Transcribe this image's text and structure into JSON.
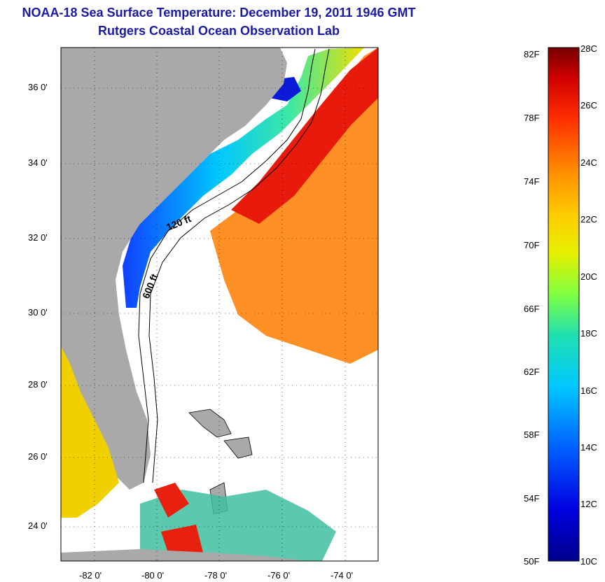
{
  "title": {
    "line1": "NOAA-18 Sea Surface Temperature:  December 19, 2011 1946 GMT",
    "line2": "Rutgers Coastal Ocean Observation Lab"
  },
  "axes": {
    "lat_labels": [
      "36 0'",
      "34 0'",
      "32 0'",
      "30 0'",
      "28 0'",
      "26 0'",
      "24 0'"
    ],
    "lon_labels": [
      "-82 0'",
      "-80 0'",
      "-78 0'",
      "-76 0'",
      "-74 0'"
    ]
  },
  "contours": {
    "shallow": "120 ft",
    "deep": "600 ft"
  },
  "colorbar": {
    "fahrenheit": [
      "82F",
      "78F",
      "74F",
      "70F",
      "66F",
      "62F",
      "58F",
      "54F",
      "50F"
    ],
    "celsius": [
      "28C",
      "26C",
      "24C",
      "22C",
      "20C",
      "18C",
      "16C",
      "14C",
      "12C",
      "10C"
    ]
  },
  "colors": {
    "title": "#1a1aa6",
    "land": "#a9a9a9",
    "warm": "#e81a0c",
    "cold": "#00008b"
  }
}
